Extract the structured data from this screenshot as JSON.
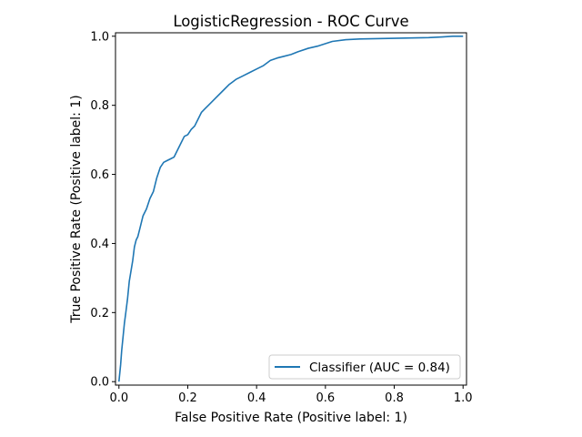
{
  "chart_data": {
    "type": "line",
    "title": "LogisticRegression - ROC Curve",
    "xlabel": "False Positive Rate (Positive label: 1)",
    "ylabel": "True Positive Rate (Positive label: 1)",
    "xlim": [
      -0.01,
      1.01
    ],
    "ylim": [
      -0.01,
      1.01
    ],
    "xticks": [
      0.0,
      0.2,
      0.4,
      0.6,
      0.8,
      1.0
    ],
    "xtick_labels": [
      "0.0",
      "0.2",
      "0.4",
      "0.6",
      "0.8",
      "1.0"
    ],
    "yticks": [
      0.0,
      0.2,
      0.4,
      0.6,
      0.8,
      1.0
    ],
    "ytick_labels": [
      "0.0",
      "0.2",
      "0.4",
      "0.6",
      "0.8",
      "1.0"
    ],
    "grid": false,
    "legend_position": "lower-right",
    "series": [
      {
        "name": "Classifier (AUC = 0.84)",
        "color": "#1f77b4",
        "x": [
          0.0,
          0.002,
          0.005,
          0.008,
          0.012,
          0.016,
          0.02,
          0.025,
          0.03,
          0.035,
          0.04,
          0.045,
          0.05,
          0.055,
          0.06,
          0.065,
          0.07,
          0.08,
          0.09,
          0.1,
          0.11,
          0.12,
          0.13,
          0.14,
          0.15,
          0.16,
          0.17,
          0.18,
          0.19,
          0.2,
          0.21,
          0.22,
          0.23,
          0.24,
          0.25,
          0.26,
          0.28,
          0.3,
          0.32,
          0.34,
          0.36,
          0.38,
          0.4,
          0.42,
          0.44,
          0.46,
          0.48,
          0.5,
          0.52,
          0.55,
          0.58,
          0.62,
          0.66,
          0.7,
          0.75,
          0.8,
          0.85,
          0.9,
          0.94,
          0.97,
          1.0
        ],
        "y": [
          0.0,
          0.02,
          0.05,
          0.09,
          0.13,
          0.17,
          0.2,
          0.24,
          0.29,
          0.32,
          0.35,
          0.39,
          0.41,
          0.42,
          0.44,
          0.46,
          0.48,
          0.5,
          0.53,
          0.55,
          0.59,
          0.62,
          0.635,
          0.64,
          0.645,
          0.65,
          0.67,
          0.69,
          0.71,
          0.715,
          0.73,
          0.74,
          0.76,
          0.78,
          0.79,
          0.8,
          0.82,
          0.84,
          0.86,
          0.875,
          0.885,
          0.895,
          0.905,
          0.915,
          0.93,
          0.937,
          0.942,
          0.947,
          0.955,
          0.965,
          0.972,
          0.985,
          0.99,
          0.992,
          0.993,
          0.994,
          0.995,
          0.996,
          0.998,
          1.0,
          1.0
        ]
      }
    ]
  }
}
